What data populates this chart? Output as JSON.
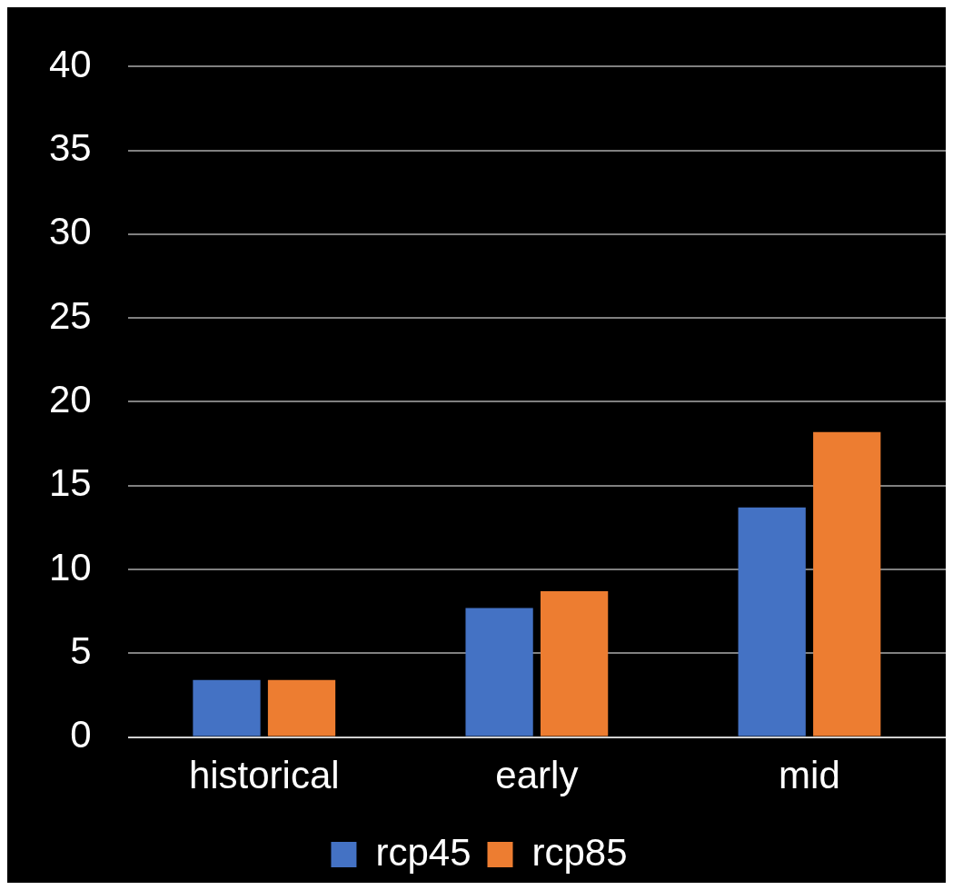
{
  "chart_data": {
    "type": "bar",
    "categories": [
      "historical",
      "early",
      "mid"
    ],
    "series": [
      {
        "name": "rcp45",
        "color": "#4472c4",
        "values": [
          3.4,
          7.7,
          13.7
        ]
      },
      {
        "name": "rcp85",
        "color": "#ed7d31",
        "values": [
          3.4,
          8.7,
          18.2
        ]
      }
    ],
    "ylim": [
      0,
      40
    ],
    "yticks": [
      0,
      5,
      10,
      15,
      20,
      25,
      30,
      35,
      40
    ],
    "grid": "y",
    "legend": "bottom"
  }
}
